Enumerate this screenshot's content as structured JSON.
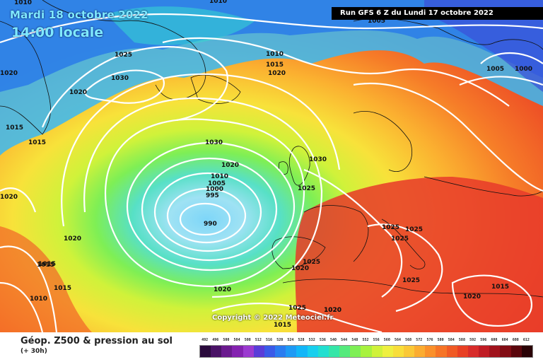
{
  "header": {
    "date": "Mardi 18 octobre 2022",
    "time": "14:00 locale",
    "run": "Run GFS 6 Z du Lundi 17 octobre 2022"
  },
  "copyright": "Copyright © 2022 Meteociel.fr",
  "footer": {
    "title": "Géop. Z500 & pression au sol",
    "subtitle": "(+ 30h)"
  },
  "colorscale": {
    "labels": [
      "492",
      "496",
      "500",
      "504",
      "508",
      "512",
      "516",
      "520",
      "524",
      "528",
      "532",
      "536",
      "540",
      "544",
      "548",
      "552",
      "556",
      "560",
      "564",
      "568",
      "572",
      "576",
      "580",
      "584",
      "588",
      "592",
      "596",
      "600",
      "604",
      "608",
      "612"
    ],
    "colors": [
      "#2a0a3c",
      "#4a1266",
      "#6a1a8e",
      "#8422b0",
      "#9b3ad0",
      "#5a3cd8",
      "#3a5ae8",
      "#2a7cf0",
      "#1e9af5",
      "#12b6f8",
      "#18cfee",
      "#22dfd0",
      "#35e6a8",
      "#55ea7c",
      "#7eef55",
      "#a8f23e",
      "#d0f23a",
      "#eef040",
      "#f8de3a",
      "#fac836",
      "#fbac30",
      "#fa902a",
      "#f67426",
      "#f05a24",
      "#e84024",
      "#d82c2a",
      "#c01c24",
      "#a0121c",
      "#820c14",
      "#5a060c",
      "#2a0206"
    ]
  },
  "isobar_labels": [
    {
      "text": "1010",
      "key": "tl"
    },
    {
      "text": "1010",
      "key": "tc"
    },
    {
      "text": "1005",
      "key": "tr"
    },
    {
      "text": "1025",
      "key": "a"
    },
    {
      "text": "1030",
      "key": "b"
    },
    {
      "text": "1020",
      "key": "c"
    },
    {
      "text": "1020",
      "key": "d"
    },
    {
      "text": "1015",
      "key": "e"
    },
    {
      "text": "1015",
      "key": "f"
    },
    {
      "text": "1010",
      "key": "g"
    },
    {
      "text": "1015",
      "key": "h"
    },
    {
      "text": "1020",
      "key": "i"
    },
    {
      "text": "1005",
      "key": "j"
    },
    {
      "text": "1000",
      "key": "k"
    },
    {
      "text": "1030",
      "key": "l"
    },
    {
      "text": "1020",
      "key": "m"
    },
    {
      "text": "1030",
      "key": "n"
    },
    {
      "text": "1025",
      "key": "o"
    },
    {
      "text": "1010",
      "key": "p"
    },
    {
      "text": "1005",
      "key": "q"
    },
    {
      "text": "1000",
      "key": "r"
    },
    {
      "text": "995",
      "key": "s"
    },
    {
      "text": "990",
      "key": "t"
    },
    {
      "text": "1020",
      "key": "u"
    },
    {
      "text": "1015",
      "key": "v"
    },
    {
      "text": "1015",
      "key": "w"
    },
    {
      "text": "1010",
      "key": "x"
    },
    {
      "text": "1015",
      "key": "y"
    },
    {
      "text": "1020",
      "key": "z"
    },
    {
      "text": "1020",
      "key": "aa"
    },
    {
      "text": "1025",
      "key": "ab"
    },
    {
      "text": "1025",
      "key": "ac"
    },
    {
      "text": "1025",
      "key": "ad"
    },
    {
      "text": "1025",
      "key": "ae"
    },
    {
      "text": "1025",
      "key": "af"
    },
    {
      "text": "1020",
      "key": "ag"
    },
    {
      "text": "1025",
      "key": "ah"
    },
    {
      "text": "1020",
      "key": "ai"
    },
    {
      "text": "1015",
      "key": "aj"
    },
    {
      "text": "1020",
      "key": "ak"
    },
    {
      "text": "1015",
      "key": "al"
    },
    {
      "text": "1020",
      "key": "am"
    }
  ]
}
